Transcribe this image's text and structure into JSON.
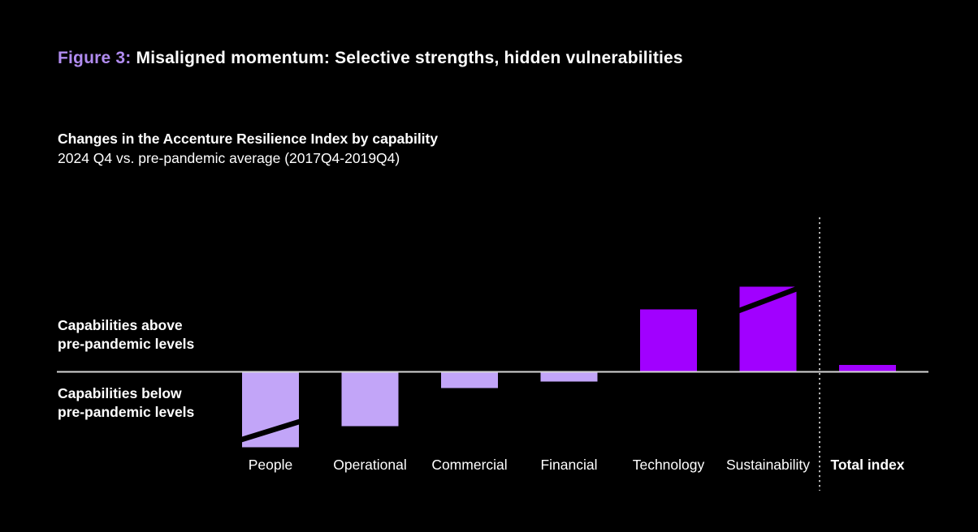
{
  "header": {
    "figure_label": "Figure 3:",
    "title_rest": "Misaligned momentum: Selective strengths, hidden vulnerabilities"
  },
  "subtitle": {
    "line1": "Changes in the Accenture Resilience Index by capability",
    "line2": "2024 Q4 vs. pre-pandemic average (2017Q4-2019Q4)"
  },
  "axis_annotations": {
    "above_line1": "Capabilities above",
    "above_line2": "pre-pandemic levels",
    "below_line1": "Capabilities below",
    "below_line2": "pre-pandemic levels"
  },
  "colors": {
    "background": "#000000",
    "text": "#ffffff",
    "figure_label_accent": "#b18cf0",
    "negative_bar": "#c2a5f8",
    "positive_bar": "#a100ff",
    "axis_line": "#d6d6d6",
    "separator_line": "#e0e0e0",
    "slash_marker": "#000000"
  },
  "chart_data": {
    "type": "bar",
    "title": "Changes in the Accenture Resilience Index by capability",
    "subtitle": "2024 Q4 vs. pre-pandemic average (2017Q4-2019Q4)",
    "categories": [
      "People",
      "Operational",
      "Commercial",
      "Financial",
      "Technology",
      "Sustainability",
      "Total index"
    ],
    "values": [
      -9.3,
      -6.7,
      -2.0,
      -1.2,
      7.7,
      10.5,
      0.85
    ],
    "units": "change in index (axis unlabeled, values estimated from bar heights)",
    "baseline": 0,
    "ylim": [
      -12,
      14
    ],
    "grid": false,
    "legend": false,
    "bar_style": [
      "negative",
      "negative",
      "negative",
      "negative",
      "positive",
      "positive",
      "positive"
    ],
    "slash_markers": [
      {
        "category": "People",
        "from": -8.4,
        "to": -6.1
      },
      {
        "category": "Sustainability",
        "from": 7.5,
        "to": 10.3
      }
    ],
    "separator_before_category": "Total index",
    "emphasis_category": "Total index",
    "annotations": [
      "Capabilities above pre-pandemic levels",
      "Capabilities below pre-pandemic levels"
    ]
  }
}
